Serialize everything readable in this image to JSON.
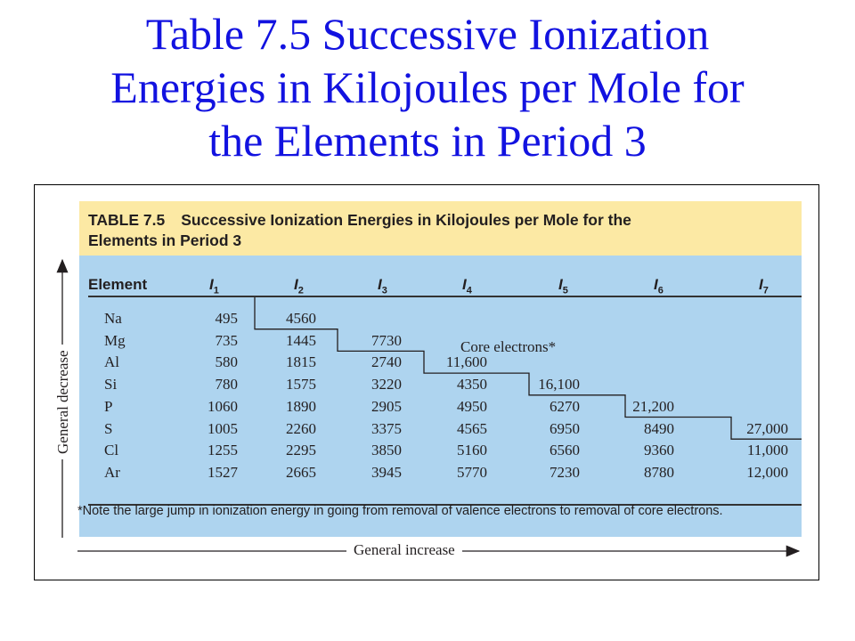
{
  "slide_title_lines": [
    "Table 7.5  Successive Ionization",
    "Energies in Kilojoules per Mole for",
    "the Elements in Period 3"
  ],
  "table": {
    "label": "TABLE 7.5",
    "caption_line1": "Successive Ionization Energies in Kilojoules per Mole for the",
    "caption_line2": "Elements in Period 3",
    "element_header": "Element",
    "ionization_headers": [
      {
        "letter": "I",
        "sub": "1"
      },
      {
        "letter": "I",
        "sub": "2"
      },
      {
        "letter": "I",
        "sub": "3"
      },
      {
        "letter": "I",
        "sub": "4"
      },
      {
        "letter": "I",
        "sub": "5"
      },
      {
        "letter": "I",
        "sub": "6"
      },
      {
        "letter": "I",
        "sub": "7"
      }
    ],
    "rows": [
      {
        "element": "Na",
        "values": [
          "495",
          "4560",
          "",
          "",
          "",
          "",
          ""
        ]
      },
      {
        "element": "Mg",
        "values": [
          "735",
          "1445",
          "7730",
          "",
          "",
          "",
          ""
        ]
      },
      {
        "element": "Al",
        "values": [
          "580",
          "1815",
          "2740",
          "11,600",
          "",
          "",
          ""
        ]
      },
      {
        "element": "Si",
        "values": [
          "780",
          "1575",
          "3220",
          "4350",
          "16,100",
          "",
          ""
        ]
      },
      {
        "element": "P",
        "values": [
          "1060",
          "1890",
          "2905",
          "4950",
          "6270",
          "21,200",
          ""
        ]
      },
      {
        "element": "S",
        "values": [
          "1005",
          "2260",
          "3375",
          "4565",
          "6950",
          "8490",
          "27,000"
        ]
      },
      {
        "element": "Cl",
        "values": [
          "1255",
          "2295",
          "3850",
          "5160",
          "6560",
          "9360",
          "11,000"
        ]
      },
      {
        "element": "Ar",
        "values": [
          "1527",
          "2665",
          "3945",
          "5770",
          "7230",
          "8780",
          "12,000"
        ]
      }
    ],
    "core_electrons_label": "Core electrons*",
    "footnote": "*Note the large jump in ionization energy in going from removal of valence electrons to removal of core electrons.",
    "vertical_axis_label": "General decrease",
    "horizontal_axis_label": "General increase"
  }
}
